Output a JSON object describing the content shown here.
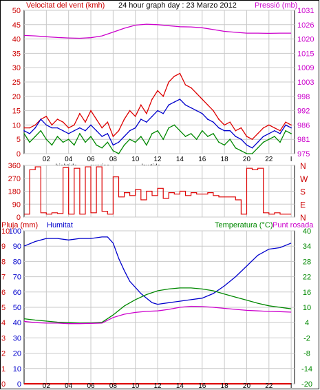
{
  "chart_data": [
    {
      "type": "line",
      "title": "24 hour graph day : 23 Marzo 2012",
      "ylabel_left": "Velocitat del vent (kmh)",
      "ylabel_right": "Pressió (mb)",
      "hours": [
        "02",
        "04",
        "06",
        "08",
        "10",
        "12",
        "14",
        "16",
        "18",
        "20",
        "22",
        "I"
      ],
      "annotations": [
        "hightide",
        "sunrise",
        "lowtide"
      ],
      "y_left_ticks": [
        "50",
        "45",
        "40",
        "35",
        "30",
        "25",
        "20",
        "15",
        "10",
        "5",
        "0"
      ],
      "y_right_ticks": [
        "1031",
        "1026",
        "1020",
        "1015",
        "1009",
        "1003",
        "998",
        "992",
        "986",
        "981",
        "975"
      ],
      "ylim_left": [
        0,
        50
      ],
      "ylim_right": [
        975,
        1031
      ],
      "x_range_hours": [
        0,
        24.3
      ],
      "series": [
        {
          "name": "wind gust",
          "color": "#dd0000",
          "x": [
            0,
            0.5,
            1,
            1.5,
            2,
            2.5,
            3,
            3.5,
            4,
            4.5,
            5,
            5.5,
            6,
            6.5,
            7,
            7.5,
            8,
            8.5,
            9,
            9.5,
            10,
            10.5,
            11,
            11.5,
            12,
            12.5,
            13,
            13.5,
            14,
            14.5,
            15,
            15.5,
            16,
            16.5,
            17,
            17.5,
            18,
            18.5,
            19,
            19.5,
            20,
            20.5,
            21,
            21.5,
            22,
            22.5,
            23,
            23.5,
            24
          ],
          "values": [
            9,
            9,
            10,
            12,
            13,
            10,
            12,
            11,
            9,
            10,
            14,
            11,
            15,
            12,
            9,
            11,
            6,
            8,
            12,
            15,
            13,
            17,
            14,
            19,
            22,
            20,
            25,
            27,
            28,
            24,
            23,
            21,
            19,
            17,
            15,
            12,
            10,
            11,
            8,
            9,
            6,
            5,
            7,
            9,
            10,
            9,
            8,
            11,
            10
          ]
        },
        {
          "name": "wind average",
          "color": "#0000cc",
          "x": [
            0,
            0.5,
            1,
            1.5,
            2,
            2.5,
            3,
            3.5,
            4,
            4.5,
            5,
            5.5,
            6,
            6.5,
            7,
            7.5,
            8,
            8.5,
            9,
            9.5,
            10,
            10.5,
            11,
            11.5,
            12,
            12.5,
            13,
            13.5,
            14,
            14.5,
            15,
            15.5,
            16,
            16.5,
            17,
            17.5,
            18,
            18.5,
            19,
            19.5,
            20,
            20.5,
            21,
            21.5,
            22,
            22.5,
            23,
            23.5,
            24
          ],
          "values": [
            8,
            7,
            9,
            12,
            10,
            9,
            9,
            8,
            7,
            8,
            9,
            8,
            10,
            8,
            6,
            7,
            3,
            4,
            6,
            8,
            9,
            12,
            11,
            13,
            15,
            14,
            17,
            18,
            19,
            17,
            16,
            15,
            14,
            12,
            11,
            9,
            8,
            8,
            6,
            5,
            3,
            2,
            4,
            6,
            7,
            8,
            7,
            10,
            9
          ]
        },
        {
          "name": "wind direction/minimum",
          "color": "#008800",
          "x": [
            0,
            0.5,
            1,
            1.5,
            2,
            2.5,
            3,
            3.5,
            4,
            4.5,
            5,
            5.5,
            6,
            6.5,
            7,
            7.5,
            8,
            8.5,
            9,
            9.5,
            10,
            10.5,
            11,
            11.5,
            12,
            12.5,
            13,
            13.5,
            14,
            14.5,
            15,
            15.5,
            16,
            16.5,
            17,
            17.5,
            18,
            18.5,
            19,
            19.5,
            20,
            20.5,
            21,
            21.5,
            22,
            22.5,
            23,
            23.5,
            24
          ],
          "values": [
            7,
            4,
            6,
            8,
            5,
            3,
            6,
            4,
            5,
            3,
            7,
            4,
            6,
            3,
            2,
            4,
            1,
            0,
            3,
            5,
            4,
            6,
            3,
            7,
            8,
            5,
            9,
            10,
            8,
            6,
            7,
            5,
            8,
            6,
            7,
            4,
            3,
            5,
            2,
            1,
            0,
            0,
            2,
            4,
            5,
            6,
            4,
            8,
            7
          ]
        },
        {
          "name": "pressure",
          "color": "#cc00cc",
          "axis": "right",
          "x": [
            0,
            1,
            2,
            3,
            4,
            5,
            6,
            7,
            8,
            9,
            10,
            11,
            12,
            13,
            14,
            15,
            16,
            17,
            18,
            19,
            20,
            21,
            22,
            23,
            24
          ],
          "values": [
            1021.2,
            1021.0,
            1020.7,
            1020.4,
            1020.2,
            1020.1,
            1020.3,
            1021.0,
            1022.5,
            1024.0,
            1025.2,
            1025.6,
            1025.4,
            1025.0,
            1024.6,
            1024.5,
            1024.2,
            1023.5,
            1022.8,
            1022.4,
            1022.1,
            1022.1,
            1022.0,
            1022.1,
            1022.1
          ]
        }
      ]
    },
    {
      "type": "line",
      "ylabel_right": "N W S E N",
      "y_left_ticks": [
        "360",
        "270",
        "180",
        "90",
        "0"
      ],
      "ylim": [
        0,
        360
      ],
      "series": [
        {
          "name": "wind direction",
          "color": "#dd0000",
          "x": [
            0,
            0.5,
            1,
            1.5,
            2,
            2.5,
            3,
            3.5,
            4,
            4.5,
            5,
            5.5,
            6,
            6.5,
            7,
            7.5,
            8,
            8.5,
            9,
            9.5,
            10,
            10.5,
            11,
            11.5,
            12,
            12.5,
            13,
            13.5,
            14,
            14.5,
            15,
            15.5,
            16,
            16.5,
            17,
            17.5,
            18,
            18.5,
            19,
            19.5,
            20,
            20.5,
            21,
            21.5,
            22,
            22.5,
            23,
            23.5,
            24
          ],
          "values": [
            20,
            330,
            350,
            30,
            20,
            30,
            25,
            345,
            20,
            340,
            20,
            350,
            30,
            350,
            40,
            20,
            280,
            140,
            170,
            150,
            190,
            120,
            180,
            150,
            200,
            130,
            170,
            160,
            180,
            150,
            170,
            160,
            160,
            170,
            150,
            140,
            140,
            140,
            120,
            20,
            340,
            330,
            340,
            30,
            20,
            30,
            20,
            20,
            20
          ]
        }
      ]
    },
    {
      "type": "line",
      "ylabel_left": "Pluja (mm)",
      "ylabel_left2": "Humitat",
      "ylabel_right": "Temperatura (°C)",
      "ylabel_right2": "Punt rosada",
      "hours": [
        "02",
        "04",
        "06",
        "08",
        "10",
        "12",
        "14",
        "16",
        "18",
        "20",
        "22",
        "I"
      ],
      "annotations": [
        "hightide",
        "sunrise",
        "lowtide"
      ],
      "y_rain_ticks": [
        "10",
        "9",
        "8",
        "7",
        "6",
        "5",
        "4",
        "3",
        "2",
        "1",
        "0"
      ],
      "y_humidity_ticks": [
        "100",
        "90",
        "80",
        "70",
        "60",
        "50",
        "40",
        "30",
        "20",
        "10",
        "0"
      ],
      "y_temp_ticks": [
        "40",
        "34",
        "28",
        "22",
        "16",
        "10",
        "4",
        "-2",
        "-8",
        "-14",
        "-20"
      ],
      "ylim_humidity": [
        0,
        100
      ],
      "ylim_temp": [
        -20,
        40
      ],
      "series": [
        {
          "name": "Humitat",
          "color": "#0000cc",
          "x": [
            0,
            1,
            2,
            3,
            4,
            5,
            6,
            7,
            7.5,
            8,
            8.5,
            9,
            9.5,
            10,
            10.5,
            11,
            11.5,
            12,
            13,
            14,
            15,
            16,
            17,
            18,
            19,
            20,
            21,
            22,
            23,
            24
          ],
          "values": [
            90,
            93,
            95,
            95,
            94,
            95,
            95,
            96,
            96,
            92,
            82,
            74,
            67,
            63,
            59,
            56,
            53,
            52,
            53,
            54,
            55,
            56,
            59,
            64,
            70,
            77,
            84,
            88,
            89,
            92
          ]
        },
        {
          "name": "Temperatura",
          "color": "#008800",
          "axis": "temp",
          "x": [
            0,
            1,
            2,
            3,
            4,
            5,
            6,
            7,
            8,
            9,
            10,
            11,
            12,
            13,
            14,
            15,
            16,
            17,
            18,
            19,
            20,
            21,
            22,
            23,
            24
          ],
          "values": [
            5.5,
            5.0,
            4.6,
            4.2,
            4.0,
            3.8,
            3.9,
            4.1,
            7.0,
            10.5,
            13.0,
            15.0,
            16.5,
            17.2,
            17.6,
            17.6,
            17.2,
            16.5,
            15.2,
            14.0,
            12.8,
            11.6,
            10.6,
            10.0,
            9.4
          ]
        },
        {
          "name": "Punt rosada",
          "color": "#cc00cc",
          "axis": "temp",
          "x": [
            0,
            1,
            2,
            3,
            4,
            5,
            6,
            7,
            8,
            9,
            10,
            11,
            12,
            13,
            14,
            15,
            16,
            17,
            18,
            19,
            20,
            21,
            22,
            23,
            24
          ],
          "values": [
            4.5,
            4.0,
            3.8,
            3.8,
            3.6,
            3.6,
            3.7,
            3.8,
            6.0,
            7.3,
            8.0,
            8.4,
            8.6,
            9.2,
            10.0,
            10.4,
            10.3,
            10.0,
            9.6,
            9.2,
            8.8,
            8.6,
            8.4,
            8.3,
            8.1
          ]
        },
        {
          "name": "Pluja",
          "color": "#dd0000",
          "axis": "rain",
          "x": [
            0,
            24
          ],
          "values": [
            0,
            0
          ]
        }
      ]
    }
  ]
}
